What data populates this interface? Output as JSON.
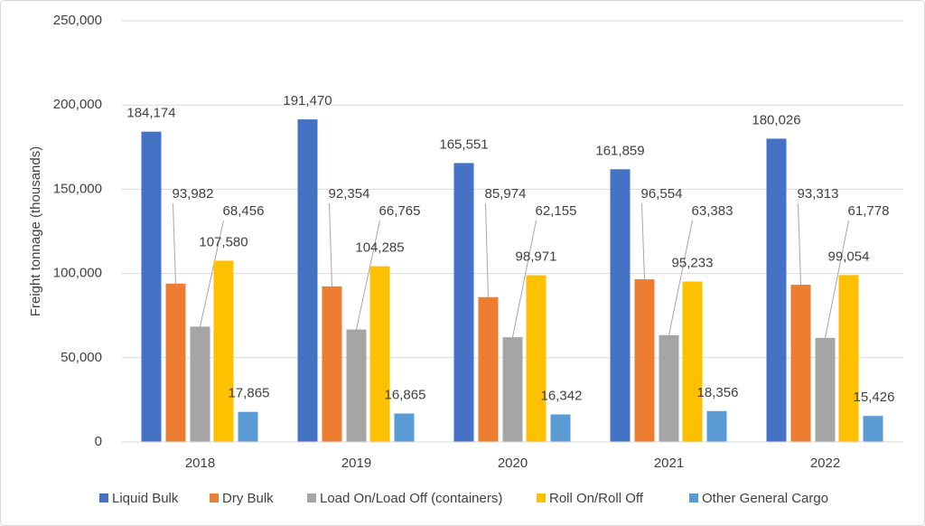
{
  "chart_data": {
    "type": "bar",
    "y_label": "Freight tonnage (thousands)",
    "categories": [
      "2018",
      "2019",
      "2020",
      "2021",
      "2022"
    ],
    "series": [
      {
        "name": "Liquid Bulk",
        "color": "#4472c4",
        "values": [
          184174,
          191470,
          165551,
          161859,
          180026
        ],
        "value_labels": [
          "184,174",
          "191,470",
          "165,551",
          "161,859",
          "180,026"
        ]
      },
      {
        "name": "Dry Bulk",
        "color": "#ed7d31",
        "values": [
          93982,
          92354,
          85974,
          96554,
          93313
        ],
        "value_labels": [
          "93,982",
          "92,354",
          "85,974",
          "96,554",
          "93,313"
        ]
      },
      {
        "name": "Load On/Load Off (containers)",
        "color": "#a5a5a5",
        "values": [
          68456,
          66765,
          62155,
          63383,
          61778
        ],
        "value_labels": [
          "68,456",
          "66,765",
          "62,155",
          "63,383",
          "61,778"
        ]
      },
      {
        "name": "Roll On/Roll Off",
        "color": "#ffc000",
        "values": [
          107580,
          104285,
          98971,
          95233,
          99054
        ],
        "value_labels": [
          "107,580",
          "104,285",
          "98,971",
          "95,233",
          "99,054"
        ]
      },
      {
        "name": "Other General Cargo",
        "color": "#5b9bd5",
        "values": [
          17865,
          16865,
          16342,
          18356,
          15426
        ],
        "value_labels": [
          "17,865",
          "16,865",
          "16,342",
          "18,356",
          "15,426"
        ]
      }
    ],
    "ylim": [
      0,
      250000
    ],
    "yticks": [
      {
        "value": 0,
        "label": "0"
      },
      {
        "value": 50000,
        "label": "50,000"
      },
      {
        "value": 100000,
        "label": "100,000"
      },
      {
        "value": 150000,
        "label": "150,000"
      },
      {
        "value": 200000,
        "label": "200,000"
      },
      {
        "value": 250000,
        "label": "250,000"
      }
    ],
    "grid": true,
    "legend": "bottom"
  }
}
